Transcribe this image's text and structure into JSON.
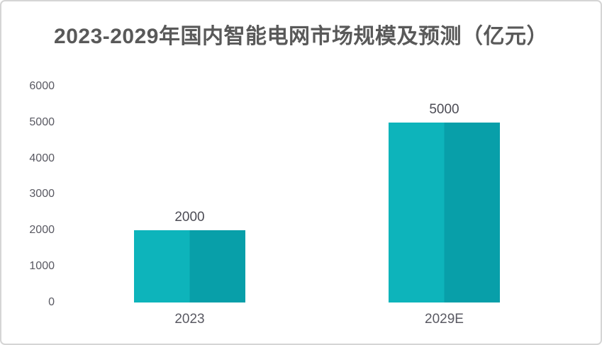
{
  "frame": {
    "background": "#ffffff",
    "border_color": "#d5d5d5"
  },
  "title": {
    "text": "2023-2029年国内智能电网市场规模及预测（亿元）",
    "color": "#595959"
  },
  "chart_data": {
    "type": "bar",
    "title": "2023-2029年国内智能电网市场规模及预测（亿元）",
    "unit": "亿元",
    "categories": [
      "2023",
      "2029E"
    ],
    "values": [
      2000,
      5000
    ],
    "data_labels": [
      "2000",
      "5000"
    ],
    "xlabel": "",
    "ylabel": "",
    "y_ticks": [
      0,
      1000,
      2000,
      3000,
      4000,
      5000,
      6000
    ],
    "ylim": [
      0,
      6000
    ],
    "grid": false,
    "legend_position": "none",
    "axis_line": false,
    "bar_color_left": "#0db4bb",
    "bar_color_right": "#089fa9",
    "axis_label_color": "#595962",
    "data_label_color": "#4c4c55",
    "title_color": "#595959"
  }
}
